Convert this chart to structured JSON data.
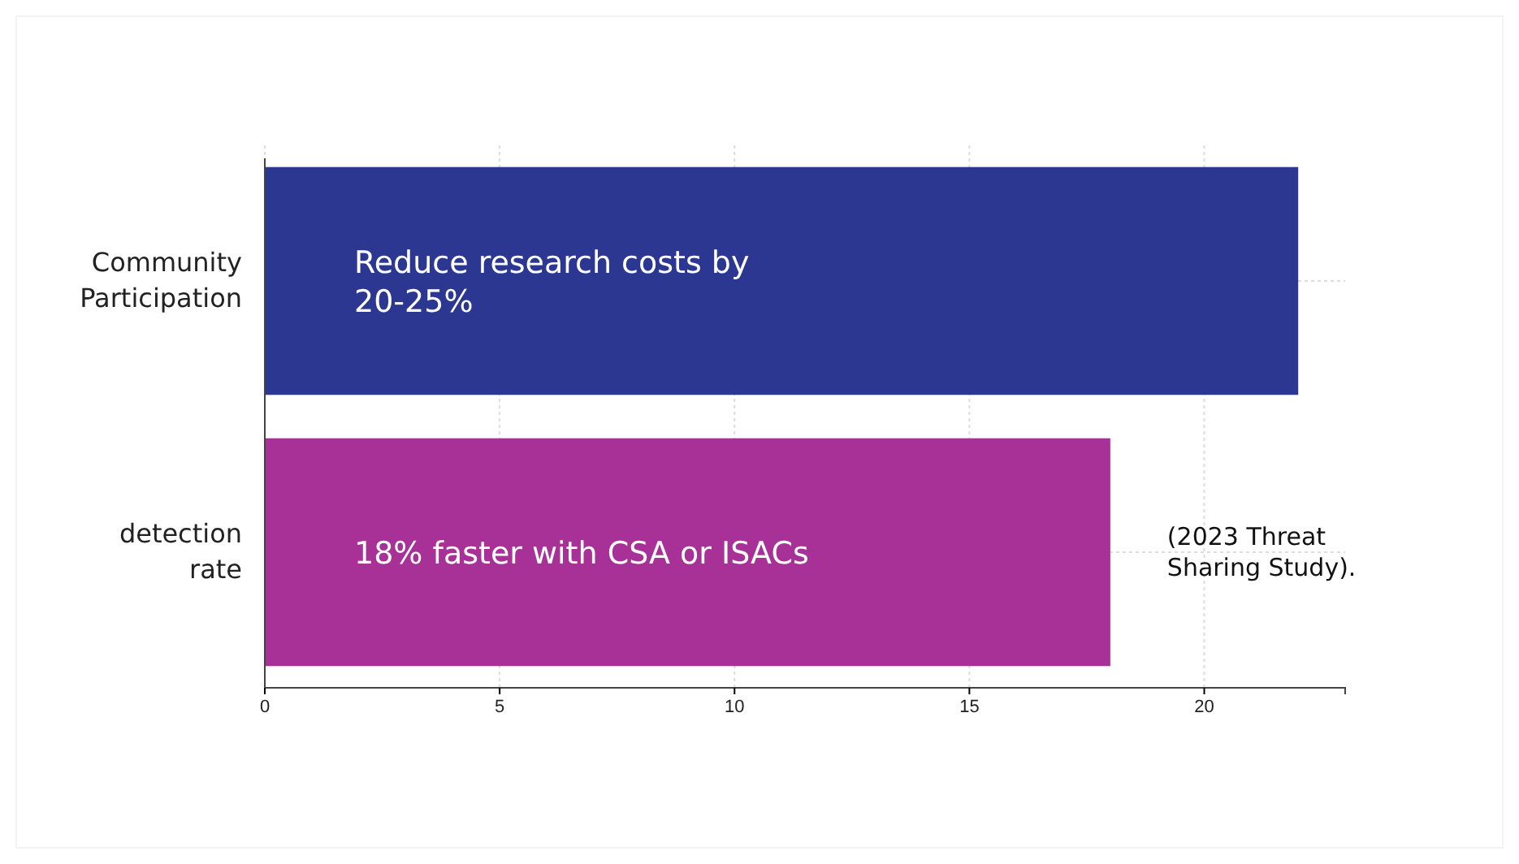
{
  "chart_data": {
    "type": "bar",
    "orientation": "horizontal",
    "categories": [
      "Community Participation",
      "detection rate"
    ],
    "values": [
      22,
      18
    ],
    "colors": [
      "#2b3791",
      "#a83197"
    ],
    "xlim": [
      0,
      23
    ],
    "xticks": [
      0,
      5,
      10,
      15,
      20
    ],
    "grid": true,
    "annotations": [
      "Reduce research costs by 20-25%",
      "18% faster with CSA or ISACs",
      "(2023 Threat Sharing Study)."
    ]
  }
}
